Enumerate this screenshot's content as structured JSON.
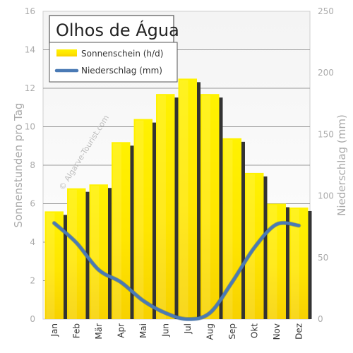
{
  "chart_data": {
    "type": "bar",
    "title": "Olhos de Água",
    "watermark": "© Algarve-Tourist.com",
    "categories": [
      "Jan",
      "Feb",
      "Mär",
      "Apr",
      "Mai",
      "Jun",
      "Jul",
      "Aug",
      "Sep",
      "Okt",
      "Nov",
      "Dez"
    ],
    "ylabel": "Sonnenstunden pro Tag",
    "y2label": "Niederschlag (mm)",
    "ylim": [
      0,
      16
    ],
    "y2lim": [
      0,
      250
    ],
    "yticks": [
      "0",
      "2",
      "4",
      "6",
      "8",
      "10",
      "12",
      "14",
      "16"
    ],
    "y2ticks": [
      "0",
      "50",
      "100",
      "150",
      "200",
      "250"
    ],
    "grid": true,
    "legend_position": "top-left",
    "series": [
      {
        "name": "Sonnenschein (h/d)",
        "kind": "bar",
        "axis": "left",
        "color": "#ffee00",
        "values": [
          5.6,
          6.8,
          7.0,
          9.2,
          10.4,
          11.7,
          12.5,
          11.7,
          9.4,
          7.6,
          6.0,
          5.8
        ]
      },
      {
        "name": "Niederschlag (mm)",
        "kind": "line",
        "axis": "right",
        "color": "#4a7ab5",
        "values": [
          78,
          62,
          40,
          30,
          15,
          5,
          0,
          5,
          30,
          58,
          77,
          76
        ]
      }
    ]
  }
}
